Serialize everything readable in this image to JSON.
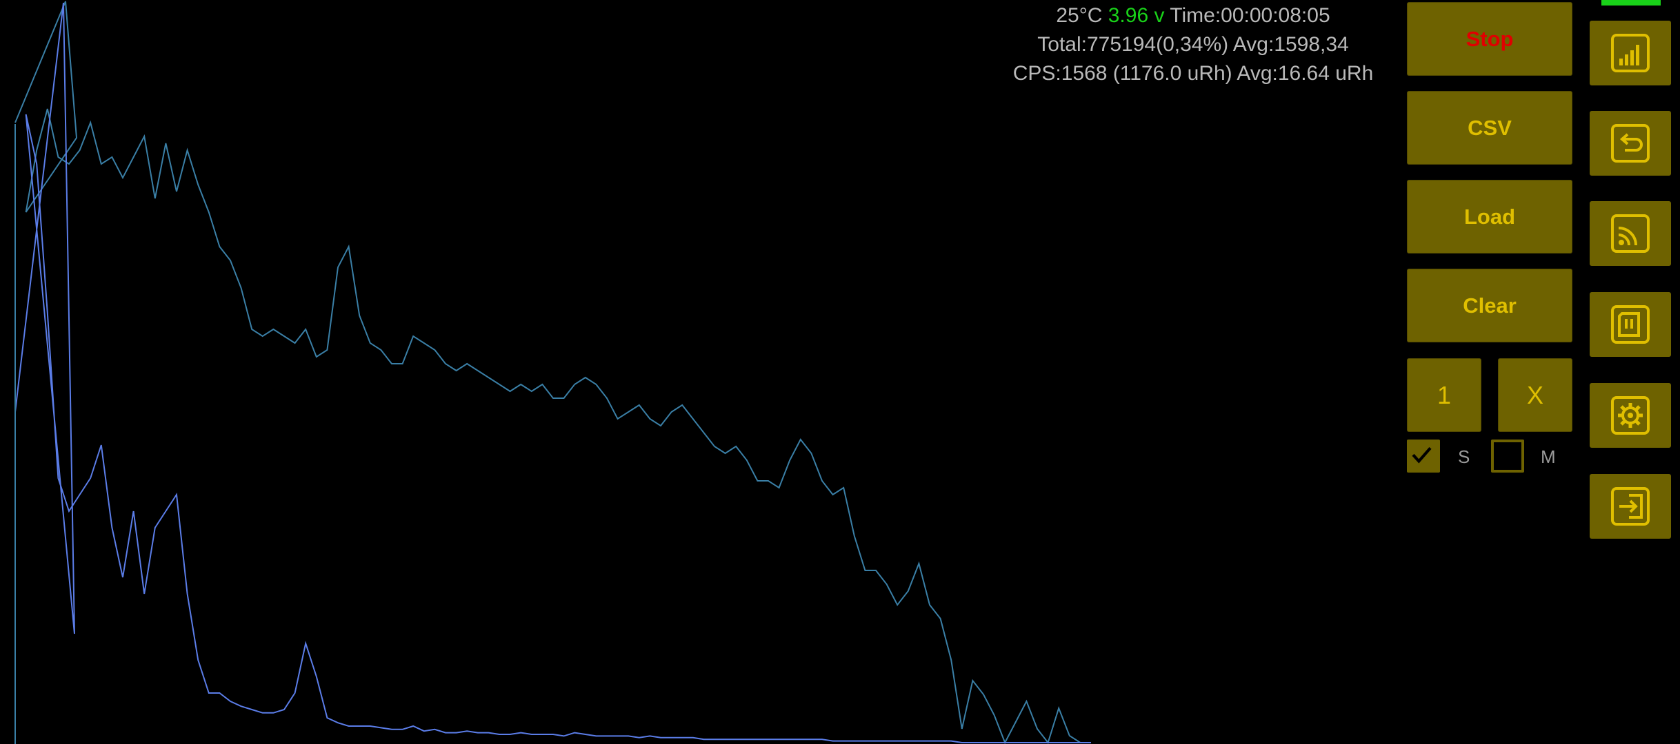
{
  "status": {
    "temperature": "25°C",
    "voltage": "3.96 v",
    "time": "Time:00:00:08:05",
    "total": "Total:775194(0,34%) Avg:1598,34",
    "cps": "CPS:1568 (1176.0 uRh) Avg:16.64 uRh"
  },
  "buttons": {
    "stop": "Stop",
    "csv": "CSV",
    "load": "Load",
    "clear": "Clear",
    "one": "1",
    "x": "X"
  },
  "checkboxes": {
    "s_label": "S",
    "s_checked": true,
    "m_label": "M",
    "m_checked": false
  },
  "side_icons": [
    "signal-bars-icon",
    "return-icon",
    "cast-icon",
    "sd-card-icon",
    "settings-gear-icon",
    "exit-icon"
  ],
  "colors": {
    "background": "#000000",
    "button_bg": "#6e6200",
    "button_text": "#e0bf00",
    "stop_text": "#e00000",
    "voltage": "#19d219",
    "log_curve": "#3a7fa6",
    "linear_curve": "#5b7de8",
    "status_text": "#b9b9b9"
  },
  "chart_data": {
    "type": "line",
    "title": "",
    "xlabel": "",
    "ylabel": "",
    "x": [
      0,
      10,
      20,
      30,
      40,
      50,
      60,
      70,
      80,
      90,
      100,
      110,
      120,
      130,
      140,
      150,
      160,
      170,
      180,
      190,
      200,
      210,
      220,
      230,
      240,
      250,
      260,
      270,
      280,
      290,
      300,
      310,
      320,
      330,
      340,
      350,
      360,
      370,
      380,
      390,
      400,
      410,
      420,
      430,
      440,
      450,
      460,
      470,
      480,
      490,
      500,
      510,
      520,
      530,
      540,
      550,
      560,
      570,
      580,
      590,
      600,
      610,
      620,
      630,
      640,
      650,
      660,
      670,
      680,
      690,
      700,
      710,
      720,
      730,
      740,
      750,
      760,
      770,
      780,
      790,
      800,
      810,
      820,
      830,
      840,
      850,
      860,
      870,
      880,
      890,
      900,
      910,
      920,
      930,
      940,
      950,
      960,
      970,
      980,
      990,
      1000
    ],
    "series": [
      {
        "values": [
          0.9,
          0.77,
          0.86,
          0.92,
          0.85,
          0.84,
          0.86,
          0.9,
          0.84,
          0.85,
          0.82,
          0.85,
          0.88,
          0.79,
          0.87,
          0.8,
          0.86,
          0.81,
          0.77,
          0.72,
          0.7,
          0.66,
          0.6,
          0.59,
          0.6,
          0.59,
          0.58,
          0.6,
          0.56,
          0.57,
          0.69,
          0.72,
          0.62,
          0.58,
          0.57,
          0.55,
          0.55,
          0.59,
          0.58,
          0.57,
          0.55,
          0.54,
          0.55,
          0.54,
          0.53,
          0.52,
          0.51,
          0.52,
          0.51,
          0.52,
          0.5,
          0.5,
          0.52,
          0.53,
          0.52,
          0.5,
          0.47,
          0.48,
          0.49,
          0.47,
          0.46,
          0.48,
          0.49,
          0.47,
          0.45,
          0.43,
          0.42,
          0.43,
          0.41,
          0.38,
          0.38,
          0.37,
          0.41,
          0.44,
          0.42,
          0.38,
          0.36,
          0.37,
          0.3,
          0.25,
          0.25,
          0.23,
          0.2,
          0.22,
          0.26,
          0.2,
          0.18,
          0.12,
          0.02,
          0.09,
          0.07,
          0.04,
          0.0,
          0.03,
          0.06,
          0.02,
          0.0,
          0.05,
          0.01,
          0.0,
          0.0
        ]
      },
      {
        "values": [
          0.2,
          0.38,
          0.35,
          0.26,
          0.16,
          0.14,
          0.15,
          0.16,
          0.18,
          0.13,
          0.1,
          0.14,
          0.09,
          0.13,
          0.14,
          0.15,
          0.09,
          0.05,
          0.03,
          0.03,
          0.025,
          0.022,
          0.02,
          0.018,
          0.018,
          0.02,
          0.03,
          0.06,
          0.04,
          0.015,
          0.012,
          0.01,
          0.01,
          0.01,
          0.009,
          0.008,
          0.008,
          0.01,
          0.007,
          0.008,
          0.006,
          0.006,
          0.007,
          0.006,
          0.006,
          0.005,
          0.005,
          0.006,
          0.005,
          0.005,
          0.005,
          0.004,
          0.006,
          0.005,
          0.004,
          0.004,
          0.004,
          0.004,
          0.003,
          0.004,
          0.003,
          0.003,
          0.003,
          0.003,
          0.002,
          0.002,
          0.002,
          0.002,
          0.002,
          0.002,
          0.002,
          0.002,
          0.002,
          0.002,
          0.002,
          0.002,
          0.001,
          0.001,
          0.001,
          0.001,
          0.001,
          0.001,
          0.001,
          0.001,
          0.001,
          0.001,
          0.001,
          0.001,
          0.0,
          0.0,
          0.0,
          0.0,
          0.0,
          0.0,
          0.0,
          0.0,
          0.0,
          0.0,
          0.0,
          0.0,
          0.0
        ]
      }
    ]
  }
}
